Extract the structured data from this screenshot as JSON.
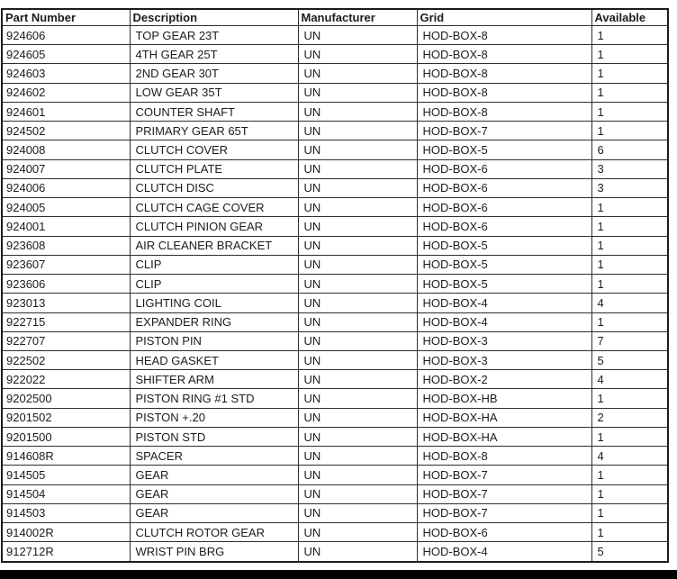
{
  "page": {
    "background": "#ffffff",
    "text_color": "#1c1c1c",
    "border_color": "#2e2e2e",
    "bottom_bar_color": "#000000"
  },
  "table": {
    "columns": [
      {
        "label": "Part Number",
        "width": 142
      },
      {
        "label": "Description",
        "width": 187
      },
      {
        "label": "Manufacturer",
        "width": 132
      },
      {
        "label": "Grid",
        "width": 194
      },
      {
        "label": "Available",
        "width": 85
      }
    ],
    "rows": [
      [
        "924606",
        "TOP GEAR 23T",
        "UN",
        "HOD-BOX-8",
        "1"
      ],
      [
        "924605",
        "4TH GEAR 25T",
        "UN",
        "HOD-BOX-8",
        "1"
      ],
      [
        "924603",
        "2ND GEAR 30T",
        "UN",
        "HOD-BOX-8",
        "1"
      ],
      [
        "924602",
        "LOW GEAR 35T",
        "UN",
        "HOD-BOX-8",
        "1"
      ],
      [
        "924601",
        "COUNTER SHAFT",
        "UN",
        "HOD-BOX-8",
        "1"
      ],
      [
        "924502",
        "PRIMARY GEAR 65T",
        "UN",
        "HOD-BOX-7",
        "1"
      ],
      [
        "924008",
        "CLUTCH COVER",
        "UN",
        "HOD-BOX-5",
        "6"
      ],
      [
        "924007",
        "CLUTCH PLATE",
        "UN",
        "HOD-BOX-6",
        "3"
      ],
      [
        "924006",
        "CLUTCH DISC",
        "UN",
        "HOD-BOX-6",
        "3"
      ],
      [
        "924005",
        "CLUTCH CAGE COVER",
        "UN",
        "HOD-BOX-6",
        "1"
      ],
      [
        "924001",
        "CLUTCH PINION GEAR",
        "UN",
        "HOD-BOX-6",
        "1"
      ],
      [
        "923608",
        "AIR CLEANER BRACKET",
        "UN",
        "HOD-BOX-5",
        "1"
      ],
      [
        "923607",
        "CLIP",
        "UN",
        "HOD-BOX-5",
        "1"
      ],
      [
        "923606",
        "CLIP",
        "UN",
        "HOD-BOX-5",
        "1"
      ],
      [
        "923013",
        "LIGHTING COIL",
        "UN",
        "HOD-BOX-4",
        "4"
      ],
      [
        "922715",
        "EXPANDER RING",
        "UN",
        "HOD-BOX-4",
        "1"
      ],
      [
        "922707",
        "PISTON PIN",
        "UN",
        "HOD-BOX-3",
        "7"
      ],
      [
        "922502",
        "HEAD GASKET",
        "UN",
        "HOD-BOX-3",
        "5"
      ],
      [
        "922022",
        "SHIFTER ARM",
        "UN",
        "HOD-BOX-2",
        "4"
      ],
      [
        "9202500",
        "PISTON RING #1 STD",
        "UN",
        "HOD-BOX-HB",
        "1"
      ],
      [
        "9201502",
        "PISTON +.20",
        "UN",
        "HOD-BOX-HA",
        "2"
      ],
      [
        "9201500",
        "PISTON STD",
        "UN",
        "HOD-BOX-HA",
        "1"
      ],
      [
        "914608R",
        "SPACER",
        "UN",
        "HOD-BOX-8",
        "4"
      ],
      [
        "914505",
        "GEAR",
        "UN",
        "HOD-BOX-7",
        "1"
      ],
      [
        "914504",
        "GEAR",
        "UN",
        "HOD-BOX-7",
        "1"
      ],
      [
        "914503",
        "GEAR",
        "UN",
        "HOD-BOX-7",
        "1"
      ],
      [
        "914002R",
        "CLUTCH ROTOR GEAR",
        "UN",
        "HOD-BOX-6",
        "1"
      ],
      [
        "912712R",
        "WRIST PIN BRG",
        "UN",
        "HOD-BOX-4",
        "5"
      ]
    ]
  }
}
